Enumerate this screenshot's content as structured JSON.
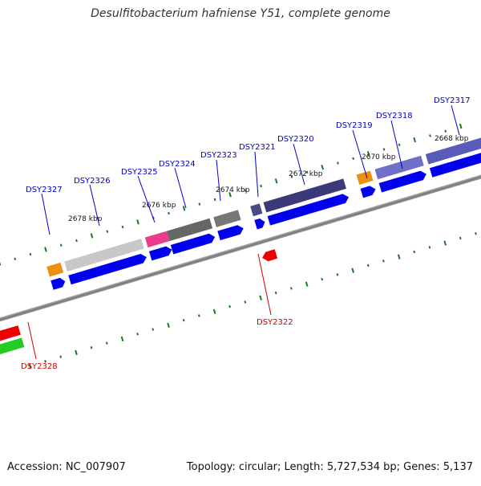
{
  "title": "Desulfitobacterium hafniense Y51, complete genome",
  "footer": {
    "accession": "Accession: NC_007907",
    "summary": "Topology: circular; Length: 5,727,534 bp; Genes: 5,137"
  },
  "scale_labels": [
    "2668 kbp",
    "2670 kbp",
    "2672 kbp",
    "2674 kbp",
    "2676 kbp",
    "2678 kbp"
  ],
  "genes_top": [
    "DSY2317",
    "DSY2318",
    "DSY2319",
    "DSY2320",
    "DSY2321",
    "DSY2323",
    "DSY2324",
    "DSY2325",
    "DSY2326",
    "DSY2327"
  ],
  "genes_bottom": [
    "DSY2322",
    "DSY2328"
  ],
  "colors": {
    "forward": "#0000ee",
    "reverse": "#ee0000",
    "label_forward": "#0000cc",
    "label_reverse": "#cc0000",
    "tick": "#1a7a1a",
    "backbone": "#888888"
  }
}
